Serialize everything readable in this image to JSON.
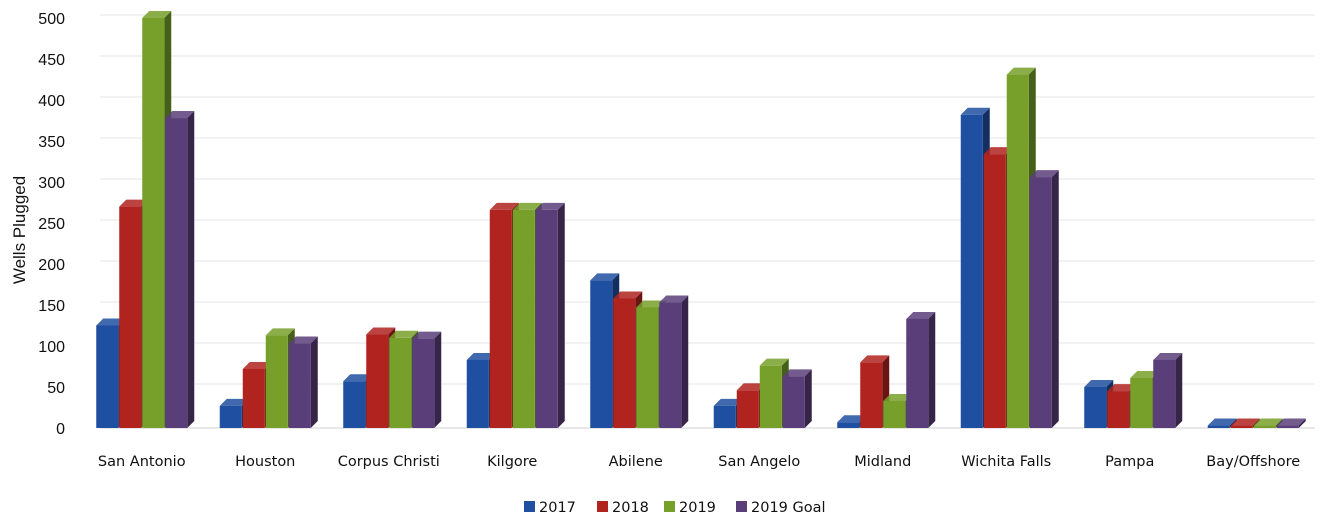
{
  "chart_data": {
    "type": "bar",
    "title": "",
    "xlabel": "",
    "ylabel": "Wells Plugged",
    "ylim": [
      0,
      500
    ],
    "yticks": [
      0,
      50,
      100,
      150,
      200,
      250,
      300,
      350,
      400,
      450,
      500
    ],
    "grid": true,
    "legend_position": "bottom",
    "categories": [
      "San Antonio",
      "Houston",
      "Corpus Christi",
      "Kilgore",
      "Abilene",
      "San Angelo",
      "Midland",
      "Wichita Falls",
      "Pampa",
      "Bay/Offshore"
    ],
    "series": [
      {
        "name": "2017",
        "color": "#1f4fa0",
        "values": [
          125,
          27,
          57,
          83,
          180,
          27,
          7,
          382,
          50,
          3
        ]
      },
      {
        "name": "2018",
        "color": "#b0231f",
        "values": [
          270,
          72,
          114,
          266,
          158,
          46,
          80,
          334,
          45,
          3
        ]
      },
      {
        "name": "2019",
        "color": "#77a02a",
        "values": [
          500,
          113,
          110,
          266,
          147,
          76,
          33,
          431,
          61,
          3
        ]
      },
      {
        "name": "2019 Goal",
        "color": "#5a3e7a",
        "values": [
          378,
          103,
          109,
          266,
          153,
          63,
          133,
          306,
          83,
          3
        ]
      }
    ]
  }
}
